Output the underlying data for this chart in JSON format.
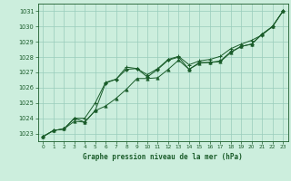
{
  "title": "Graphe pression niveau de la mer (hPa)",
  "bg_color": "#cceedd",
  "grid_color": "#99ccbb",
  "line_color": "#1a5c2a",
  "marker_color": "#1a5c2a",
  "xlim": [
    -0.5,
    23.5
  ],
  "ylim": [
    1022.5,
    1031.5
  ],
  "yticks": [
    1023,
    1024,
    1025,
    1026,
    1027,
    1028,
    1029,
    1030,
    1031
  ],
  "xticks": [
    0,
    1,
    2,
    3,
    4,
    5,
    6,
    7,
    8,
    9,
    10,
    11,
    12,
    13,
    14,
    15,
    16,
    17,
    18,
    19,
    20,
    21,
    22,
    23
  ],
  "series1": [
    1022.8,
    1023.2,
    1023.3,
    1023.8,
    1023.75,
    1024.5,
    1024.8,
    1025.3,
    1025.9,
    1026.6,
    1026.6,
    1026.65,
    1027.2,
    1027.8,
    1027.2,
    1027.6,
    1027.65,
    1027.7,
    1028.3,
    1028.7,
    1028.85,
    1029.5,
    1030.0,
    1031.0
  ],
  "series2": [
    1022.8,
    1023.2,
    1023.3,
    1024.0,
    1023.75,
    1024.5,
    1026.3,
    1026.55,
    1027.2,
    1027.25,
    1026.7,
    1027.2,
    1027.8,
    1028.0,
    1027.2,
    1027.65,
    1027.65,
    1027.75,
    1028.35,
    1028.7,
    1028.85,
    1029.5,
    1030.0,
    1031.0
  ],
  "series3": [
    1022.8,
    1023.2,
    1023.3,
    1024.0,
    1024.0,
    1025.0,
    1026.35,
    1026.55,
    1027.35,
    1027.25,
    1026.85,
    1027.25,
    1027.85,
    1028.05,
    1027.5,
    1027.75,
    1027.85,
    1028.05,
    1028.55,
    1028.85,
    1029.1,
    1029.45,
    1030.0,
    1031.0
  ]
}
